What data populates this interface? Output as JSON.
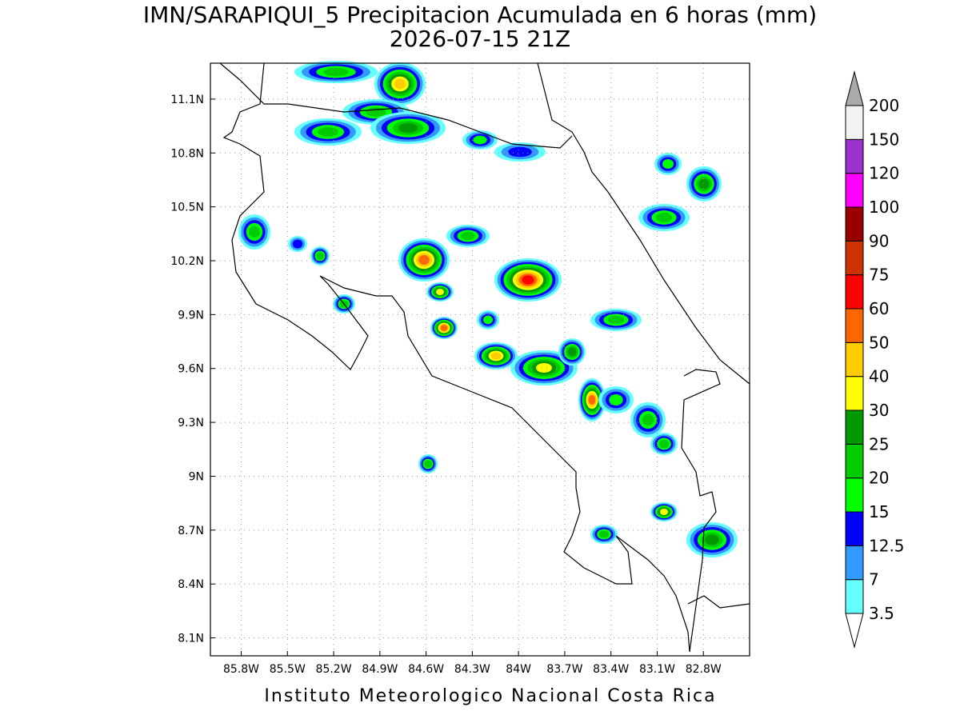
{
  "chart_data": {
    "type": "contour-map",
    "title": "IMN/SARAPIQUI_5 Precipitacion Acumulada en 6 horas (mm)",
    "subtitle": "2026-07-15 21Z",
    "footer": "Instituto Meteorologico Nacional Costa Rica",
    "xlim": [
      -86.0,
      -82.5
    ],
    "ylim": [
      8.0,
      11.3
    ],
    "xticks": [
      {
        "value": -85.8,
        "label": "85.8W"
      },
      {
        "value": -85.5,
        "label": "85.5W"
      },
      {
        "value": -85.2,
        "label": "85.2W"
      },
      {
        "value": -84.9,
        "label": "84.9W"
      },
      {
        "value": -84.6,
        "label": "84.6W"
      },
      {
        "value": -84.3,
        "label": "84.3W"
      },
      {
        "value": -84.0,
        "label": "84W"
      },
      {
        "value": -83.7,
        "label": "83.7W"
      },
      {
        "value": -83.4,
        "label": "83.4W"
      },
      {
        "value": -83.1,
        "label": "83.1W"
      },
      {
        "value": -82.8,
        "label": "82.8W"
      }
    ],
    "yticks": [
      {
        "value": 8.1,
        "label": "8.1N"
      },
      {
        "value": 8.4,
        "label": "8.4N"
      },
      {
        "value": 8.7,
        "label": "8.7N"
      },
      {
        "value": 9.0,
        "label": "9N"
      },
      {
        "value": 9.3,
        "label": "9.3N"
      },
      {
        "value": 9.6,
        "label": "9.6N"
      },
      {
        "value": 9.9,
        "label": "9.9N"
      },
      {
        "value": 10.2,
        "label": "10.2N"
      },
      {
        "value": 10.5,
        "label": "10.5N"
      },
      {
        "value": 10.8,
        "label": "10.8N"
      },
      {
        "value": 11.1,
        "label": "11.1N"
      }
    ],
    "grid": true,
    "colorbar": {
      "levels": [
        3.5,
        7,
        12.5,
        15,
        20,
        25,
        30,
        40,
        50,
        60,
        75,
        90,
        100,
        120,
        150,
        200
      ],
      "colors": [
        "#ffffff",
        "#66ffff",
        "#3399ff",
        "#0000ff",
        "#00ff00",
        "#00cc00",
        "#009900",
        "#ffff00",
        "#ffcc00",
        "#ff6600",
        "#ff0000",
        "#cc3300",
        "#990000",
        "#ff00ff",
        "#9933cc",
        "#f2f2f2",
        "#aaaaaa"
      ]
    }
  }
}
